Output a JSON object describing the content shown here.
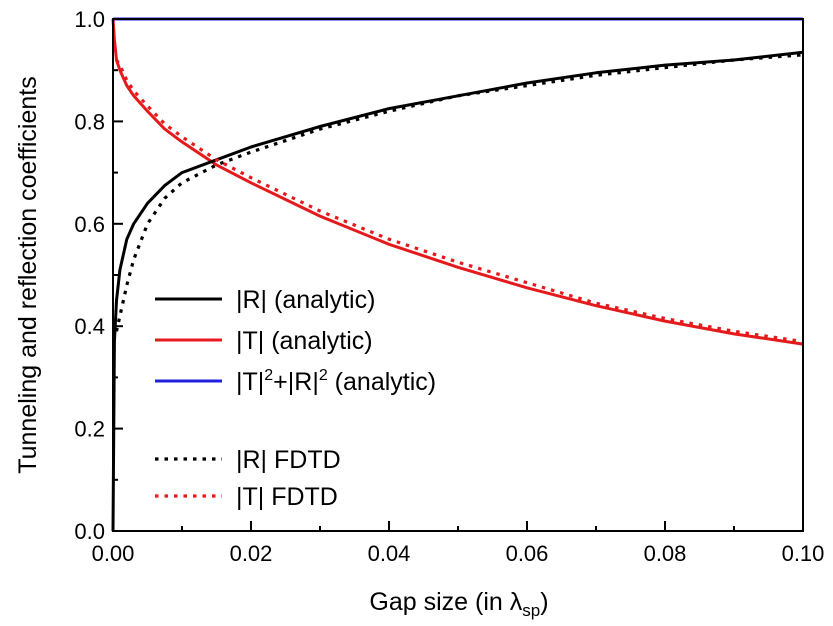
{
  "chart_data": {
    "type": "line",
    "xlabel": "Gap size (in λ",
    "xlabel_sub": "sp",
    "xlabel_close": ")",
    "ylabel": "Tunneling and reflection coefficients",
    "xlim": [
      0.0,
      0.1
    ],
    "ylim": [
      0.0,
      1.0
    ],
    "x_ticks": [
      "0.00",
      "0.02",
      "0.04",
      "0.06",
      "0.08",
      "0.10"
    ],
    "y_ticks": [
      "0.0",
      "0.2",
      "0.4",
      "0.6",
      "0.8",
      "1.0"
    ],
    "grid": false,
    "legend_position": "center-left",
    "series": [
      {
        "name": "|R| (analytic)",
        "label_parts": [
          "|R| (analytic)"
        ],
        "color": "#000000",
        "style": "solid",
        "x": [
          0,
          0.0002,
          0.0005,
          0.001,
          0.002,
          0.003,
          0.005,
          0.0075,
          0.01,
          0.015,
          0.02,
          0.03,
          0.04,
          0.05,
          0.06,
          0.07,
          0.08,
          0.09,
          0.1
        ],
        "y": [
          0.0,
          0.37,
          0.45,
          0.51,
          0.57,
          0.6,
          0.64,
          0.675,
          0.7,
          0.725,
          0.75,
          0.79,
          0.825,
          0.85,
          0.875,
          0.895,
          0.91,
          0.92,
          0.935
        ]
      },
      {
        "name": "|T| (analytic)",
        "label_parts": [
          "|T| (analytic)"
        ],
        "color": "#e41a1c",
        "style": "solid",
        "x": [
          0,
          0.0002,
          0.0005,
          0.001,
          0.002,
          0.003,
          0.005,
          0.0075,
          0.01,
          0.015,
          0.02,
          0.03,
          0.04,
          0.05,
          0.06,
          0.07,
          0.08,
          0.09,
          0.1
        ],
        "y": [
          1.0,
          0.96,
          0.92,
          0.9,
          0.87,
          0.85,
          0.82,
          0.785,
          0.76,
          0.715,
          0.68,
          0.615,
          0.56,
          0.515,
          0.475,
          0.44,
          0.41,
          0.385,
          0.365
        ]
      },
      {
        "name": "|T|²+|R|² (analytic)",
        "label_parts": [
          "|T|",
          "2",
          "+|R|",
          "2",
          " (analytic)"
        ],
        "color": "#2020e0",
        "style": "solid",
        "x": [
          0,
          0.1
        ],
        "y": [
          1.0,
          1.0
        ]
      },
      {
        "name": "|R| FDTD",
        "label_parts": [
          "|R| FDTD"
        ],
        "color": "#000000",
        "style": "dotted",
        "x": [
          0.0005,
          0.001,
          0.002,
          0.003,
          0.005,
          0.0075,
          0.01,
          0.015,
          0.02,
          0.03,
          0.04,
          0.05,
          0.06,
          0.07,
          0.08,
          0.09,
          0.1
        ],
        "y": [
          0.39,
          0.42,
          0.48,
          0.53,
          0.6,
          0.65,
          0.68,
          0.715,
          0.74,
          0.785,
          0.82,
          0.85,
          0.87,
          0.89,
          0.905,
          0.92,
          0.93
        ]
      },
      {
        "name": "|T| FDTD",
        "label_parts": [
          "|T| FDTD"
        ],
        "color": "#e41a1c",
        "style": "dotted",
        "x": [
          0.0005,
          0.001,
          0.002,
          0.003,
          0.005,
          0.0075,
          0.01,
          0.015,
          0.02,
          0.03,
          0.04,
          0.05,
          0.06,
          0.07,
          0.08,
          0.09,
          0.1
        ],
        "y": [
          0.92,
          0.91,
          0.88,
          0.86,
          0.83,
          0.795,
          0.77,
          0.725,
          0.69,
          0.625,
          0.57,
          0.525,
          0.485,
          0.445,
          0.415,
          0.39,
          0.37
        ]
      }
    ]
  }
}
